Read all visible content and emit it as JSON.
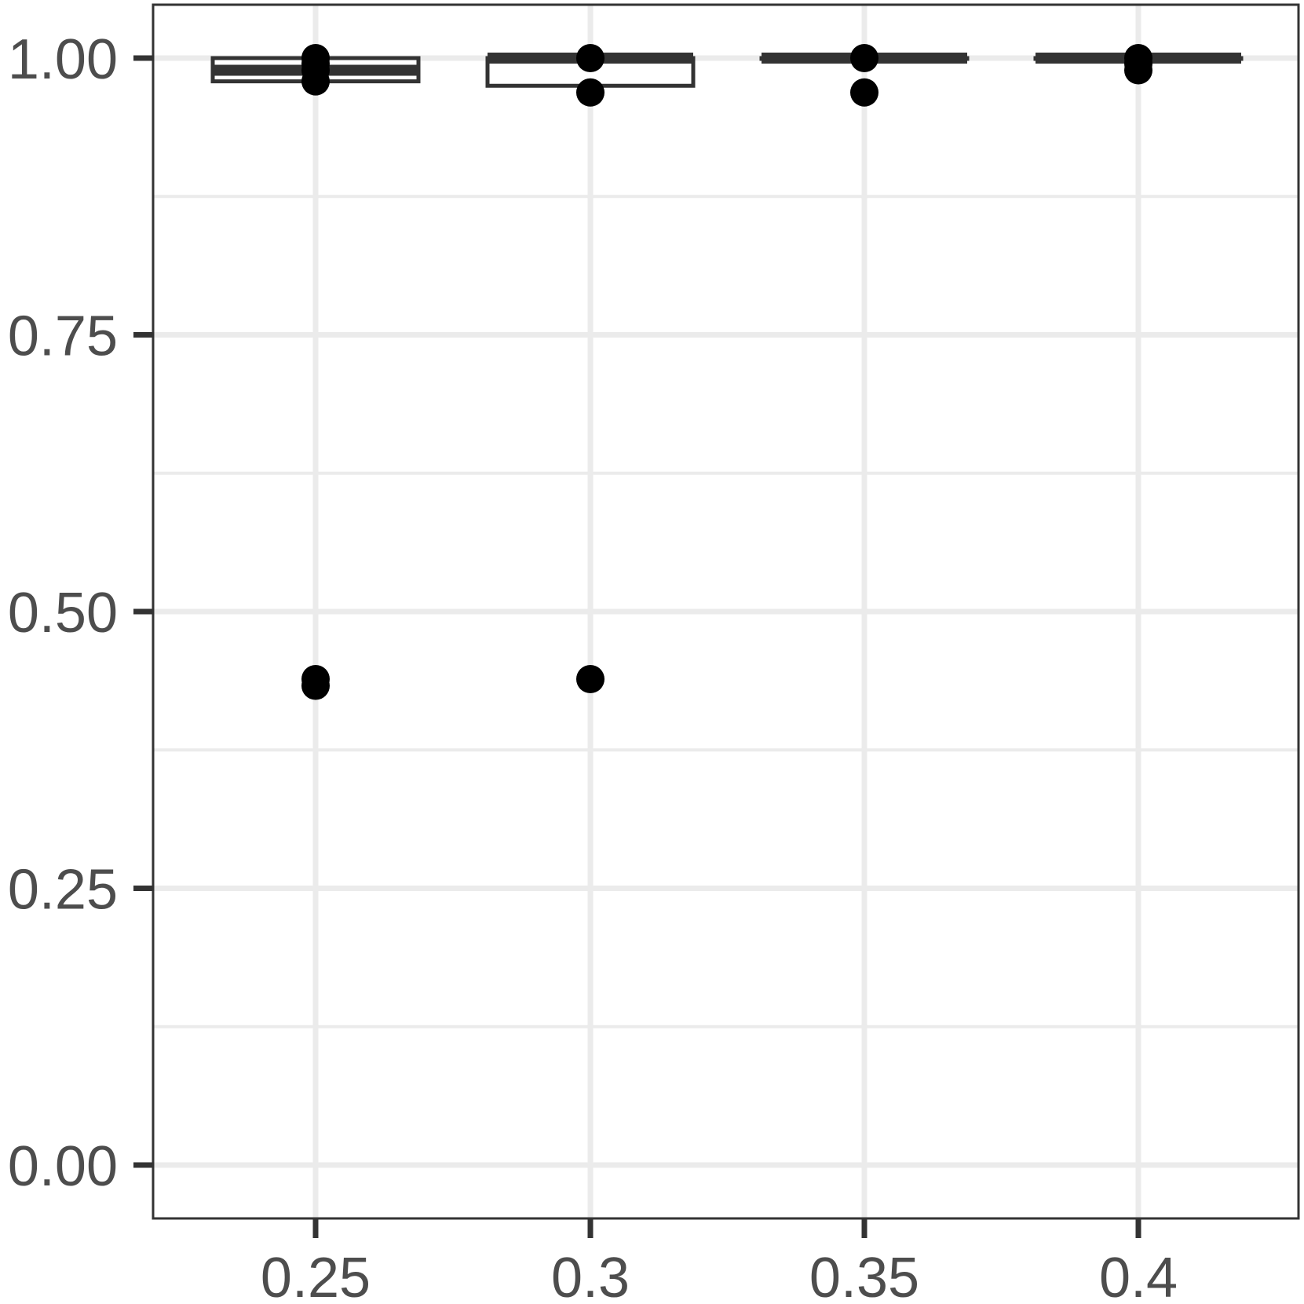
{
  "chart_data": {
    "type": "box",
    "title": "",
    "xlabel": "",
    "ylabel": "",
    "categories": [
      "0.25",
      "0.3",
      "0.35",
      "0.4"
    ],
    "ylim": [
      -0.047,
      1.05
    ],
    "y_ticks": [
      {
        "value": 0.0,
        "label": "0.00"
      },
      {
        "value": 0.25,
        "label": "0.25"
      },
      {
        "value": 0.5,
        "label": "0.50"
      },
      {
        "value": 0.75,
        "label": "0.75"
      },
      {
        "value": 1.0,
        "label": "1.00"
      }
    ],
    "y_minor_ticks": [
      0.125,
      0.375,
      0.625,
      0.875
    ],
    "grid": true,
    "boxes": [
      {
        "category": "0.25",
        "lower": 0.979,
        "q1": 0.979,
        "median": 0.989,
        "q3": 1.0,
        "upper": 1.0,
        "outliers": [
          1.0,
          0.995,
          0.989,
          0.979,
          0.439,
          0.433
        ]
      },
      {
        "category": "0.3",
        "lower": 1.0,
        "q1": 0.975,
        "median": 1.0,
        "q3": 1.0,
        "upper": 1.0,
        "outliers": [
          1.0,
          0.969,
          0.439
        ]
      },
      {
        "category": "0.35",
        "lower": 1.0,
        "q1": 1.0,
        "median": 1.0,
        "q3": 1.0,
        "upper": 1.0,
        "outliers": [
          1.0,
          0.969
        ]
      },
      {
        "category": "0.4",
        "lower": 1.0,
        "q1": 1.0,
        "median": 1.0,
        "q3": 1.0,
        "upper": 1.0,
        "outliers": [
          1.0,
          0.995,
          0.989
        ]
      }
    ],
    "colors": {
      "box_line": "#333333",
      "box_fill": "#ffffff",
      "point": "#000000",
      "grid": "#ebebeb",
      "frame": "#333333",
      "tick_text": "#4d4d4d"
    }
  }
}
